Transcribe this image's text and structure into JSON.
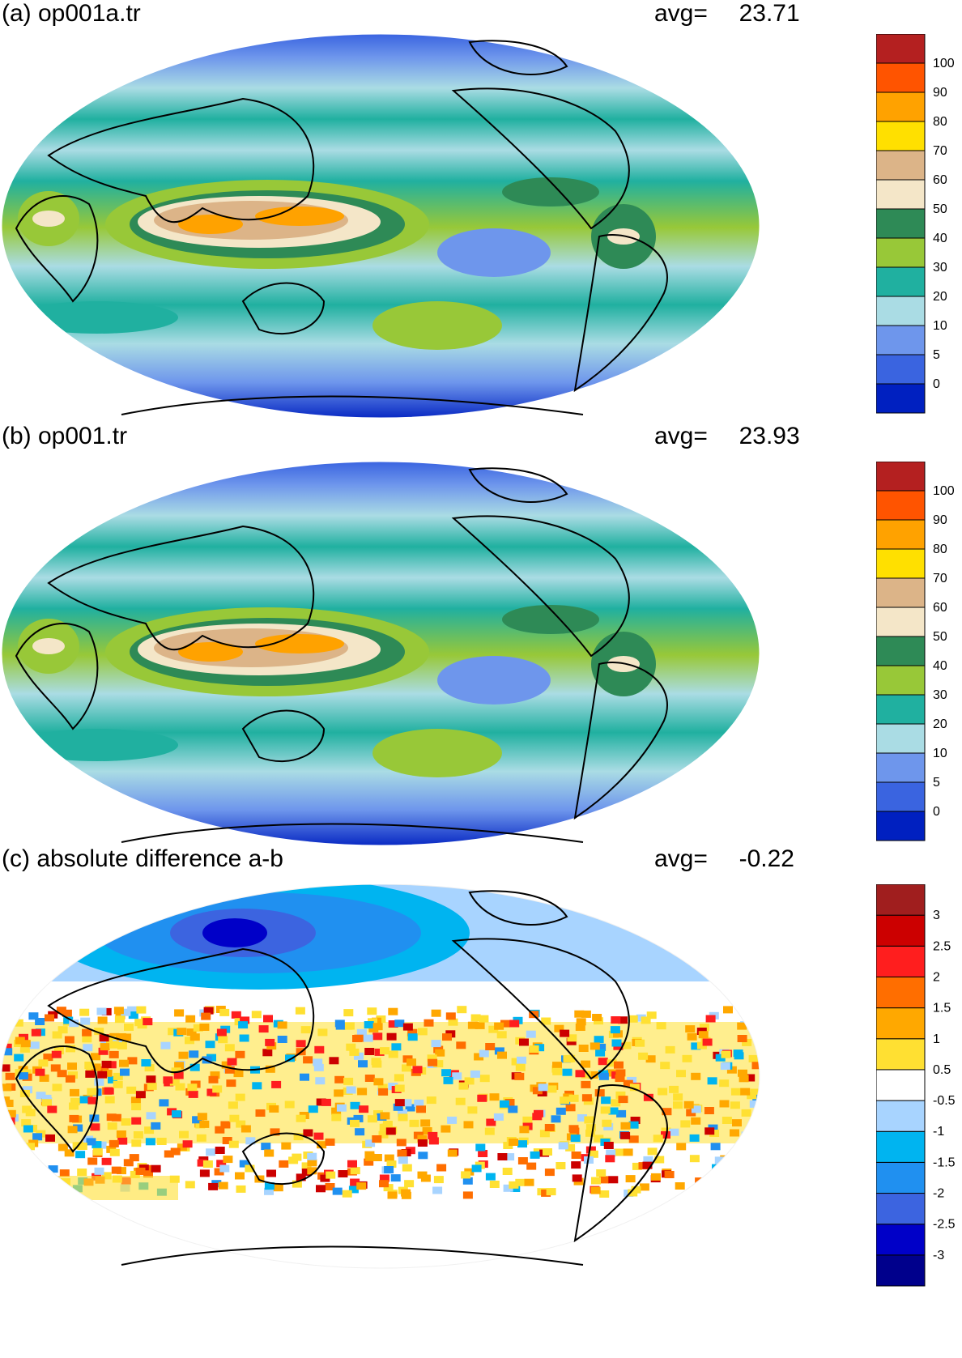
{
  "panels": [
    {
      "label": "(a) op001a.tr",
      "avg_label": "avg=",
      "avg_value": "23.71",
      "colorbar": {
        "colors": [
          "#0020c0",
          "#3a64e0",
          "#6e96ec",
          "#aadce4",
          "#20b0a0",
          "#98c838",
          "#2e8a56",
          "#f4e6c8",
          "#dcb488",
          "#ffe000",
          "#ffa200",
          "#ff5400",
          "#b42020"
        ],
        "tick_labels": [
          "0",
          "5",
          "10",
          "20",
          "30",
          "40",
          "50",
          "60",
          "70",
          "80",
          "90",
          "100"
        ]
      }
    },
    {
      "label": "(b) op001.tr",
      "avg_label": "avg=",
      "avg_value": "23.93",
      "colorbar": {
        "colors": [
          "#0020c0",
          "#3a64e0",
          "#6e96ec",
          "#aadce4",
          "#20b0a0",
          "#98c838",
          "#2e8a56",
          "#f4e6c8",
          "#dcb488",
          "#ffe000",
          "#ffa200",
          "#ff5400",
          "#b42020"
        ],
        "tick_labels": [
          "0",
          "5",
          "10",
          "20",
          "30",
          "40",
          "50",
          "60",
          "70",
          "80",
          "90",
          "100"
        ]
      }
    },
    {
      "label": "(c) absolute difference a-b",
      "avg_label": "avg=",
      "avg_value": "-0.22",
      "colorbar": {
        "colors": [
          "#00008c",
          "#0000c8",
          "#3c64e0",
          "#2090f0",
          "#00b4f0",
          "#a8d4ff",
          "#ffffff",
          "#ffe032",
          "#ffa800",
          "#ff6e00",
          "#ff1e1e",
          "#cc0000",
          "#a01e1e"
        ],
        "tick_labels": [
          "-3",
          "-2.5",
          "-2",
          "-1.5",
          "-1",
          "-0.5",
          "0.5",
          "1",
          "1.5",
          "2",
          "2.5",
          "3"
        ]
      }
    }
  ]
}
